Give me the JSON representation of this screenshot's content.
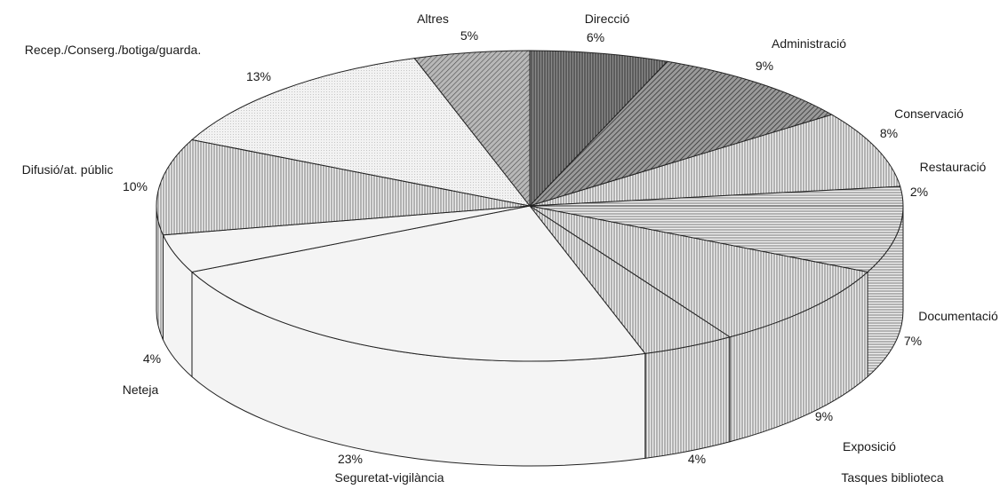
{
  "chart_data": {
    "type": "pie",
    "style": "3d-pie",
    "slices": [
      {
        "name": "Direcció",
        "value": 6,
        "pct": "6%",
        "fill": "stripe_dark"
      },
      {
        "name": "Administració",
        "value": 9,
        "pct": "9%",
        "fill": "diag_dark"
      },
      {
        "name": "Conservació",
        "value": 8,
        "pct": "8%",
        "fill": "vstripe"
      },
      {
        "name": "Restauració",
        "value": 2,
        "pct": "2%",
        "fill": "hstripe"
      },
      {
        "name": "Documentació",
        "value": 7,
        "pct": "7%",
        "fill": "hstripe"
      },
      {
        "name": "Exposició",
        "value": 9,
        "pct": "9%",
        "fill": "vstripe"
      },
      {
        "name": "Tasques biblioteca",
        "value": 4,
        "pct": "4%",
        "fill": "vstripe"
      },
      {
        "name": "Seguretat-vigilància",
        "value": 23,
        "pct": "23%",
        "fill": "light"
      },
      {
        "name": "Neteja",
        "value": 4,
        "pct": "4%",
        "fill": "light"
      },
      {
        "name": "Difusió/at. públic",
        "value": 10,
        "pct": "10%",
        "fill": "vstripe"
      },
      {
        "name": "Recep./Conserg./botiga/guarda.",
        "value": 13,
        "pct": "13%",
        "fill": "light_dots"
      },
      {
        "name": "Altres",
        "value": 5,
        "pct": "5%",
        "fill": "diag_mid"
      }
    ]
  }
}
